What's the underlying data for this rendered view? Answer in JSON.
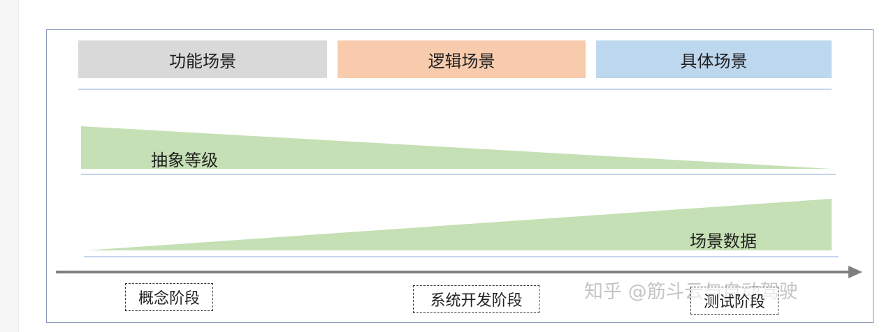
{
  "phases": [
    "功能场景",
    "逻辑场景",
    "具体场景"
  ],
  "colors": {
    "phase_functional": "#d9d9d9",
    "phase_logical": "#f8cbad",
    "phase_concrete": "#bdd7ee",
    "wedge_green": "#c5e0b4",
    "divider_blue": "#b4c7e7",
    "arrow_gray": "#7f7f7f",
    "frame_border": "#8a9bb8"
  },
  "wedges": {
    "abstraction_label": "抽象等级",
    "data_label": "场景数据"
  },
  "stages": [
    "概念阶段",
    "系统开发阶段",
    "测试阶段"
  ],
  "watermark": "知乎 @筋斗云与自动驾驶"
}
